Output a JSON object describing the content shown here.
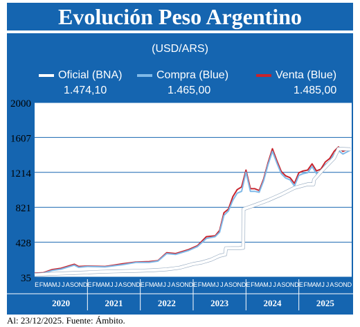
{
  "title": "Evolución Peso Argentino",
  "footer": "Al: 23/12/2025. Fuente: Ámbito.",
  "colors": {
    "panel": "#1565b0",
    "oficial": "#ffffff",
    "compra": "#7fb9e8",
    "venta": "#c8232c"
  },
  "chart_data": {
    "type": "line",
    "title": "(USD/ARS)",
    "xlabel": "",
    "ylabel": "",
    "ylim": [
      35,
      2000
    ],
    "yticks": [
      "2000",
      "1607",
      "1214",
      "821",
      "428",
      "35"
    ],
    "month_ticks": "EFMAMJJASOND",
    "years": [
      "2020",
      "2021",
      "2022",
      "2023",
      "2024",
      "2025"
    ],
    "grid": true,
    "legend_placement": "top",
    "series": [
      {
        "name": "Oficial (BNA)",
        "last_value": "1.474,10",
        "x": [
          "2020-01",
          "2020-04",
          "2020-07",
          "2020-10",
          "2021-01",
          "2021-04",
          "2021-07",
          "2021-10",
          "2022-01",
          "2022-04",
          "2022-07",
          "2022-10",
          "2023-01",
          "2023-03",
          "2023-05",
          "2023-07",
          "2023-08-10",
          "2023-08-14",
          "2023-11-15",
          "2023-12-12",
          "2023-12-14",
          "2024-03",
          "2024-06",
          "2024-09",
          "2024-12",
          "2025-03",
          "2025-04-10",
          "2025-04-14",
          "2025-06",
          "2025-09",
          "2025-10",
          "2025-12-23"
        ],
        "values": [
          60,
          70,
          76,
          82,
          88,
          95,
          100,
          103,
          107,
          113,
          122,
          142,
          182,
          200,
          230,
          275,
          290,
          360,
          362,
          366,
          800,
          845,
          900,
          965,
          1040,
          1080,
          1080,
          1130,
          1220,
          1375,
          1480,
          1474
        ]
      },
      {
        "name": "Compra (Blue)",
        "last_value": "1.465,00",
        "x": [
          "2020-01",
          "2020-03",
          "2020-05",
          "2020-07",
          "2020-10",
          "2020-11",
          "2021-01",
          "2021-05",
          "2021-09",
          "2021-12",
          "2022-03",
          "2022-05",
          "2022-07",
          "2022-09",
          "2022-12",
          "2023-02",
          "2023-04",
          "2023-06",
          "2023-07",
          "2023-08",
          "2023-09",
          "2023-10",
          "2023-11",
          "2023-12",
          "2024-01",
          "2024-02",
          "2024-03",
          "2024-04",
          "2024-05",
          "2024-06",
          "2024-07",
          "2024-08",
          "2024-09",
          "2024-10",
          "2024-11",
          "2024-12",
          "2025-01",
          "2025-02",
          "2025-03",
          "2025-04",
          "2025-05",
          "2025-06",
          "2025-07",
          "2025-08",
          "2025-09",
          "2025-10",
          "2025-11",
          "2025-12-23"
        ],
        "values": [
          75,
          80,
          110,
          125,
          170,
          145,
          155,
          150,
          175,
          200,
          200,
          215,
          300,
          290,
          335,
          380,
          470,
          490,
          540,
          730,
          780,
          900,
          980,
          1000,
          1215,
          1000,
          1000,
          990,
          1120,
          1300,
          1450,
          1320,
          1200,
          1150,
          1130,
          1060,
          1180,
          1200,
          1210,
          1280,
          1200,
          1220,
          1300,
          1340,
          1420,
          1460,
          1420,
          1465
        ]
      },
      {
        "name": "Venta (Blue)",
        "last_value": "1.485,00",
        "x": [
          "2020-01",
          "2020-03",
          "2020-05",
          "2020-07",
          "2020-10",
          "2020-11",
          "2021-01",
          "2021-05",
          "2021-09",
          "2021-12",
          "2022-03",
          "2022-05",
          "2022-07",
          "2022-09",
          "2022-12",
          "2023-02",
          "2023-04",
          "2023-06",
          "2023-07",
          "2023-08",
          "2023-09",
          "2023-10",
          "2023-11",
          "2023-12",
          "2024-01",
          "2024-02",
          "2024-03",
          "2024-04",
          "2024-05",
          "2024-06",
          "2024-07",
          "2024-08",
          "2024-09",
          "2024-10",
          "2024-11",
          "2024-12",
          "2025-01",
          "2025-02",
          "2025-03",
          "2025-04",
          "2025-05",
          "2025-06",
          "2025-07",
          "2025-08",
          "2025-09",
          "2025-10",
          "2025-11",
          "2025-12-23"
        ],
        "values": [
          80,
          85,
          120,
          135,
          180,
          155,
          160,
          155,
          185,
          205,
          210,
          220,
          310,
          300,
          345,
          390,
          490,
          500,
          560,
          760,
          800,
          940,
          1020,
          1050,
          1240,
          1030,
          1030,
          1010,
          1140,
          1320,
          1480,
          1345,
          1225,
          1175,
          1155,
          1090,
          1210,
          1230,
          1240,
          1310,
          1230,
          1250,
          1330,
          1370,
          1450,
          1500,
          1450,
          1485
        ]
      }
    ]
  }
}
